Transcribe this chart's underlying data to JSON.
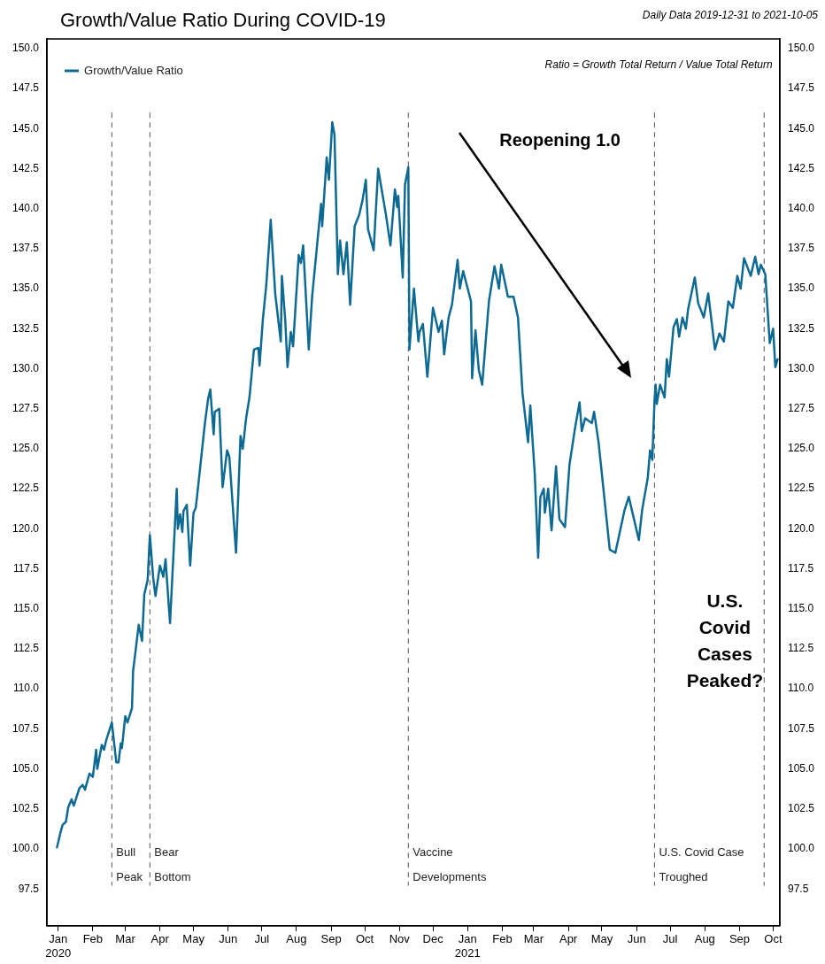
{
  "chart_data": {
    "type": "line",
    "title": "Growth/Value Ratio During COVID-19",
    "subtitle": "Daily Data 2019-12-31 to 2021-10-05",
    "annotations": [
      "Ratio = Growth Total Return / Value Total Return",
      "Reopening 1.0",
      "U.S.\nCovid\nCases\nPeaked?"
    ],
    "legend": "top left",
    "grid": false,
    "line_style": "solid",
    "marker": "none",
    "xlim": [
      "2019-12-22",
      "2021-10-07"
    ],
    "xticks": [
      {
        "value": "2020-01-01",
        "label": "Jan\n2020"
      },
      {
        "value": "2020-02-01",
        "label": "Feb"
      },
      {
        "value": "2020-03-01",
        "label": "Mar"
      },
      {
        "value": "2020-04-01",
        "label": "Apr"
      },
      {
        "value": "2020-05-01",
        "label": "May"
      },
      {
        "value": "2020-06-01",
        "label": "Jun"
      },
      {
        "value": "2020-07-01",
        "label": "Jul"
      },
      {
        "value": "2020-08-01",
        "label": "Aug"
      },
      {
        "value": "2020-09-01",
        "label": "Sep"
      },
      {
        "value": "2020-10-01",
        "label": "Oct"
      },
      {
        "value": "2020-11-01",
        "label": "Nov"
      },
      {
        "value": "2020-12-01",
        "label": "Dec"
      },
      {
        "value": "2021-01-01",
        "label": "Jan\n2021"
      },
      {
        "value": "2021-02-01",
        "label": "Feb"
      },
      {
        "value": "2021-03-01",
        "label": "Mar"
      },
      {
        "value": "2021-04-01",
        "label": "Apr"
      },
      {
        "value": "2021-05-01",
        "label": "May"
      },
      {
        "value": "2021-06-01",
        "label": "Jun"
      },
      {
        "value": "2021-07-01",
        "label": "Jul"
      },
      {
        "value": "2021-08-01",
        "label": "Aug"
      },
      {
        "value": "2021-09-01",
        "label": "Sep"
      },
      {
        "value": "2021-10-01",
        "label": "Oct"
      }
    ],
    "ylim": [
      95.2,
      150.6
    ],
    "yticks": [
      {
        "value": 97.5,
        "label": "97.5"
      },
      {
        "value": 100,
        "label": "100.0"
      },
      {
        "value": 102.5,
        "label": "102.5"
      },
      {
        "value": 105,
        "label": "105.0"
      },
      {
        "value": 107.5,
        "label": "107.5"
      },
      {
        "value": 110,
        "label": "110.0"
      },
      {
        "value": 112.5,
        "label": "112.5"
      },
      {
        "value": 115,
        "label": "115.0"
      },
      {
        "value": 117.5,
        "label": "117.5"
      },
      {
        "value": 120,
        "label": "120.0"
      },
      {
        "value": 122.5,
        "label": "122.5"
      },
      {
        "value": 125,
        "label": "125.0"
      },
      {
        "value": 127.5,
        "label": "127.5"
      },
      {
        "value": 130,
        "label": "130.0"
      },
      {
        "value": 132.5,
        "label": "132.5"
      },
      {
        "value": 135,
        "label": "135.0"
      },
      {
        "value": 137.5,
        "label": "137.5"
      },
      {
        "value": 140,
        "label": "140.0"
      },
      {
        "value": 142.5,
        "label": "142.5"
      },
      {
        "value": 145,
        "label": "145.0"
      },
      {
        "value": 147.5,
        "label": "147.5"
      },
      {
        "value": 150,
        "label": "150.0"
      }
    ],
    "y2lim": [
      95.2,
      150.6
    ],
    "y2ticks": [
      {
        "value": 97.5,
        "label": "97.5"
      },
      {
        "value": 100,
        "label": "100.0"
      },
      {
        "value": 102.5,
        "label": "102.5"
      },
      {
        "value": 105,
        "label": "105.0"
      },
      {
        "value": 107.5,
        "label": "107.5"
      },
      {
        "value": 110,
        "label": "110.0"
      },
      {
        "value": 112.5,
        "label": "112.5"
      },
      {
        "value": 115,
        "label": "115.0"
      },
      {
        "value": 117.5,
        "label": "117.5"
      },
      {
        "value": 120,
        "label": "120.0"
      },
      {
        "value": 122.5,
        "label": "122.5"
      },
      {
        "value": 125,
        "label": "125.0"
      },
      {
        "value": 127.5,
        "label": "127.5"
      },
      {
        "value": 130,
        "label": "130.0"
      },
      {
        "value": 132.5,
        "label": "132.5"
      },
      {
        "value": 135,
        "label": "135.0"
      },
      {
        "value": 137.5,
        "label": "137.5"
      },
      {
        "value": 140,
        "label": "140.0"
      },
      {
        "value": 142.5,
        "label": "142.5"
      },
      {
        "value": 145,
        "label": "145.0"
      },
      {
        "value": 147.5,
        "label": "147.5"
      },
      {
        "value": 150,
        "label": "150.0"
      }
    ],
    "ref_lines": [
      {
        "axis": "x",
        "value": "2020-02-18",
        "label": "Bull\nPeak",
        "color": "#555555",
        "line_style": "dashed"
      },
      {
        "axis": "x",
        "value": "2020-03-23",
        "label": "Bear\nBottom",
        "color": "#555555",
        "line_style": "dashed"
      },
      {
        "axis": "x",
        "value": "2020-11-09",
        "label": "Vaccine\nDevelopments",
        "color": "#555555",
        "line_style": "dashed"
      },
      {
        "axis": "x",
        "value": "2021-06-17",
        "label": "U.S. Covid Case\nTroughed",
        "color": "#555555",
        "line_style": "dashed"
      },
      {
        "axis": "x",
        "value": "2021-09-23",
        "label": null,
        "color": "#555555",
        "line_style": "dashed"
      }
    ],
    "series": [
      {
        "name": "Growth/Value Ratio",
        "color": "#0e6a93",
        "x": [
          "2019-12-31",
          "2020-01-03",
          "2020-01-05",
          "2020-01-08",
          "2020-01-10",
          "2020-01-13",
          "2020-01-15",
          "2020-01-20",
          "2020-01-23",
          "2020-01-25",
          "2020-01-29",
          "2020-02-01",
          "2020-02-04",
          "2020-02-05",
          "2020-02-09",
          "2020-02-11",
          "2020-02-13",
          "2020-02-18",
          "2020-02-22",
          "2020-02-24",
          "2020-02-26",
          "2020-02-27",
          "2020-03-01",
          "2020-03-03",
          "2020-03-07",
          "2020-03-08",
          "2020-03-13",
          "2020-03-16",
          "2020-03-18",
          "2020-03-21",
          "2020-03-23",
          "2020-03-26",
          "2020-03-28",
          "2020-04-01",
          "2020-04-04",
          "2020-04-06",
          "2020-04-10",
          "2020-04-16",
          "2020-04-17",
          "2020-04-19",
          "2020-04-21",
          "2020-04-22",
          "2020-04-25",
          "2020-04-28",
          "2020-05-01",
          "2020-05-03",
          "2020-05-06",
          "2020-05-11",
          "2020-05-14",
          "2020-05-16",
          "2020-05-19",
          "2020-05-20",
          "2020-05-24",
          "2020-05-27",
          "2020-05-31",
          "2020-06-02",
          "2020-06-08",
          "2020-06-12",
          "2020-06-14",
          "2020-06-17",
          "2020-06-20",
          "2020-06-24",
          "2020-06-28",
          "2020-06-29",
          "2020-07-02",
          "2020-07-05",
          "2020-07-09",
          "2020-07-13",
          "2020-07-18",
          "2020-07-19",
          "2020-07-22",
          "2020-07-24",
          "2020-07-27",
          "2020-07-29",
          "2020-08-03",
          "2020-08-05",
          "2020-08-07",
          "2020-08-12",
          "2020-08-15",
          "2020-08-19",
          "2020-08-23",
          "2020-08-24",
          "2020-08-28",
          "2020-08-30",
          "2020-09-02",
          "2020-09-04",
          "2020-09-07",
          "2020-09-09",
          "2020-09-12",
          "2020-09-15",
          "2020-09-18",
          "2020-09-22",
          "2020-09-26",
          "2020-09-29",
          "2020-10-02",
          "2020-10-04",
          "2020-10-09",
          "2020-10-13",
          "2020-10-20",
          "2020-10-24",
          "2020-10-28",
          "2020-10-30",
          "2020-10-31",
          "2020-11-04",
          "2020-11-06",
          "2020-11-09",
          "2020-11-10",
          "2020-11-14",
          "2020-11-18",
          "2020-11-19",
          "2020-11-22",
          "2020-11-26",
          "2020-12-01",
          "2020-12-06",
          "2020-12-09",
          "2020-12-11",
          "2020-12-15",
          "2020-12-18",
          "2020-12-23",
          "2020-12-25",
          "2020-12-28",
          "2021-01-04",
          "2021-01-05",
          "2021-01-08",
          "2021-01-11",
          "2021-01-14",
          "2021-01-20",
          "2021-01-25",
          "2021-01-29",
          "2021-01-31",
          "2021-02-06",
          "2021-02-11",
          "2021-02-15",
          "2021-02-19",
          "2021-02-24",
          "2021-02-26",
          "2021-03-02",
          "2021-03-05",
          "2021-03-07",
          "2021-03-10",
          "2021-03-11",
          "2021-03-14",
          "2021-03-17",
          "2021-03-21",
          "2021-03-24",
          "2021-03-29",
          "2021-04-02",
          "2021-04-07",
          "2021-04-11",
          "2021-04-13",
          "2021-04-16",
          "2021-04-22",
          "2021-04-24",
          "2021-04-28",
          "2021-05-08",
          "2021-05-13",
          "2021-05-21",
          "2021-05-25",
          "2021-05-29",
          "2021-06-03",
          "2021-06-06",
          "2021-06-11",
          "2021-06-13",
          "2021-06-15",
          "2021-06-17",
          "2021-06-18",
          "2021-06-19",
          "2021-06-22",
          "2021-06-26",
          "2021-06-28",
          "2021-06-30",
          "2021-07-04",
          "2021-07-07",
          "2021-07-09",
          "2021-07-12",
          "2021-07-15",
          "2021-07-17",
          "2021-07-23",
          "2021-07-26",
          "2021-07-31",
          "2021-08-04",
          "2021-08-10",
          "2021-08-14",
          "2021-08-18",
          "2021-08-22",
          "2021-08-26",
          "2021-08-30",
          "2021-09-02",
          "2021-09-05",
          "2021-09-11",
          "2021-09-15",
          "2021-09-18",
          "2021-09-20",
          "2021-09-24",
          "2021-09-28",
          "2021-10-01",
          "2021-10-03",
          "2021-10-05"
        ],
        "values": [
          100.1,
          101.0,
          101.5,
          101.7,
          102.6,
          103.1,
          102.7,
          103.8,
          104.0,
          103.7,
          104.7,
          104.5,
          106.2,
          105.0,
          106.5,
          106.2,
          106.8,
          107.9,
          105.4,
          105.4,
          106.6,
          106.3,
          108.3,
          107.9,
          108.8,
          111.1,
          114.0,
          113.0,
          115.9,
          116.8,
          119.6,
          116.9,
          115.8,
          117.7,
          117.0,
          118.1,
          114.1,
          122.5,
          120.0,
          120.9,
          119.8,
          121.1,
          121.5,
          117.7,
          121.0,
          121.3,
          123.2,
          126.5,
          128.1,
          128.7,
          125.9,
          127.3,
          127.5,
          122.6,
          124.9,
          124.5,
          118.5,
          125.8,
          125.0,
          126.9,
          128.2,
          131.2,
          131.3,
          130.2,
          133.1,
          135.2,
          139.3,
          134.7,
          131.7,
          135.8,
          133.0,
          130.1,
          132.3,
          131.4,
          137.1,
          136.6,
          137.7,
          131.2,
          134.5,
          137.4,
          140.3,
          138.9,
          143.2,
          141.8,
          145.4,
          144.6,
          135.9,
          138.0,
          135.9,
          137.9,
          134.0,
          138.9,
          139.6,
          140.5,
          141.8,
          138.7,
          137.4,
          142.5,
          139.6,
          137.7,
          141.2,
          140.1,
          140.8,
          135.7,
          141.5,
          142.6,
          131.2,
          135.0,
          131.7,
          132.3,
          132.8,
          129.5,
          133.8,
          132.3,
          133.0,
          130.9,
          133.2,
          134.0,
          136.8,
          135.0,
          136.1,
          134.2,
          129.4,
          132.4,
          129.9,
          129.0,
          134.2,
          136.4,
          135.0,
          136.5,
          134.5,
          134.5,
          133.2,
          128.5,
          125.4,
          127.7,
          123.4,
          118.2,
          122.0,
          122.5,
          121.0,
          122.5,
          119.9,
          123.9,
          120.6,
          120.1,
          124.0,
          126.3,
          127.9,
          126.1,
          126.9,
          126.6,
          127.3,
          125.4,
          118.7,
          118.5,
          121.1,
          122.0,
          120.8,
          119.3,
          121.2,
          123.2,
          124.9,
          124.3,
          128.0,
          129.0,
          127.8,
          129.0,
          128.2,
          130.6,
          129.5,
          132.6,
          133.1,
          132.0,
          133.2,
          132.5,
          133.7,
          135.7,
          134.1,
          133.2,
          134.7,
          131.2,
          132.2,
          131.7,
          134.2,
          133.8,
          135.8,
          135.0,
          136.9,
          135.8,
          137.0,
          135.9,
          136.5,
          135.9,
          131.6,
          132.5,
          130.1,
          130.6
        ]
      }
    ]
  }
}
